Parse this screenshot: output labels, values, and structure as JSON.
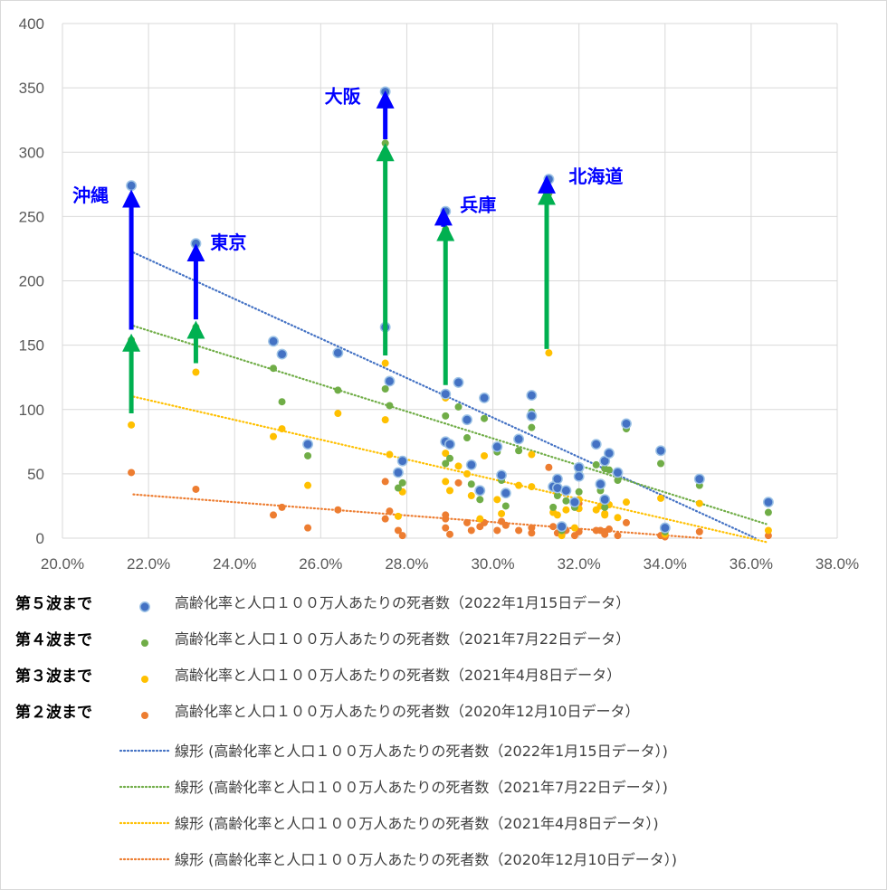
{
  "chart_data": {
    "type": "scatter",
    "xlim": [
      0.2,
      0.38
    ],
    "ylim": [
      0,
      400
    ],
    "x_ticks": [
      "20.0%",
      "22.0%",
      "24.0%",
      "26.0%",
      "28.0%",
      "30.0%",
      "32.0%",
      "34.0%",
      "36.0%",
      "38.0%"
    ],
    "y_ticks": [
      "0",
      "50",
      "100",
      "150",
      "200",
      "250",
      "300",
      "350",
      "400"
    ],
    "grid": true,
    "series": [
      {
        "name": "高齢化率と人口１００万人あたりの死者数（2022年1月15日データ）",
        "wave_label": "第５波まで",
        "color": "#4472c4",
        "points": [
          [
            0.216,
            274
          ],
          [
            0.231,
            229
          ],
          [
            0.249,
            153
          ],
          [
            0.251,
            143
          ],
          [
            0.257,
            73
          ],
          [
            0.264,
            144
          ],
          [
            0.275,
            347
          ],
          [
            0.275,
            164
          ],
          [
            0.276,
            122
          ],
          [
            0.278,
            51
          ],
          [
            0.279,
            60
          ],
          [
            0.289,
            254
          ],
          [
            0.289,
            112
          ],
          [
            0.289,
            75
          ],
          [
            0.29,
            73
          ],
          [
            0.292,
            121
          ],
          [
            0.294,
            92
          ],
          [
            0.295,
            57
          ],
          [
            0.297,
            37
          ],
          [
            0.298,
            109
          ],
          [
            0.301,
            71
          ],
          [
            0.302,
            49
          ],
          [
            0.303,
            35
          ],
          [
            0.306,
            77
          ],
          [
            0.309,
            111
          ],
          [
            0.309,
            95
          ],
          [
            0.313,
            279
          ],
          [
            0.314,
            40
          ],
          [
            0.315,
            46
          ],
          [
            0.315,
            39
          ],
          [
            0.316,
            9
          ],
          [
            0.317,
            37
          ],
          [
            0.319,
            28
          ],
          [
            0.32,
            55
          ],
          [
            0.32,
            48
          ],
          [
            0.324,
            73
          ],
          [
            0.325,
            42
          ],
          [
            0.326,
            60
          ],
          [
            0.326,
            30
          ],
          [
            0.327,
            66
          ],
          [
            0.329,
            51
          ],
          [
            0.331,
            89
          ],
          [
            0.339,
            68
          ],
          [
            0.34,
            8
          ],
          [
            0.348,
            46
          ],
          [
            0.364,
            28
          ]
        ]
      },
      {
        "name": "高齢化率と人口１００万人あたりの死者数（2021年7月22日データ）",
        "wave_label": "第４波まで",
        "color": "#70ad47",
        "points": [
          [
            0.216,
            154
          ],
          [
            0.231,
            164
          ],
          [
            0.249,
            132
          ],
          [
            0.251,
            106
          ],
          [
            0.257,
            64
          ],
          [
            0.264,
            115
          ],
          [
            0.275,
            307
          ],
          [
            0.275,
            116
          ],
          [
            0.276,
            103
          ],
          [
            0.278,
            39
          ],
          [
            0.279,
            43
          ],
          [
            0.289,
            240
          ],
          [
            0.289,
            95
          ],
          [
            0.289,
            58
          ],
          [
            0.29,
            62
          ],
          [
            0.292,
            102
          ],
          [
            0.294,
            78
          ],
          [
            0.295,
            42
          ],
          [
            0.297,
            30
          ],
          [
            0.298,
            93
          ],
          [
            0.301,
            67
          ],
          [
            0.302,
            45
          ],
          [
            0.303,
            25
          ],
          [
            0.306,
            68
          ],
          [
            0.309,
            98
          ],
          [
            0.309,
            86
          ],
          [
            0.313,
            268
          ],
          [
            0.314,
            24
          ],
          [
            0.315,
            33
          ],
          [
            0.316,
            6
          ],
          [
            0.317,
            29
          ],
          [
            0.319,
            24
          ],
          [
            0.32,
            51
          ],
          [
            0.32,
            36
          ],
          [
            0.324,
            57
          ],
          [
            0.325,
            37
          ],
          [
            0.326,
            54
          ],
          [
            0.326,
            24
          ],
          [
            0.327,
            53
          ],
          [
            0.329,
            45
          ],
          [
            0.331,
            85
          ],
          [
            0.339,
            58
          ],
          [
            0.34,
            5
          ],
          [
            0.348,
            41
          ],
          [
            0.364,
            20
          ]
        ]
      },
      {
        "name": "高齢化率と人口１００万人あたりの死者数（2021年4月8日データ）",
        "wave_label": "第３波まで",
        "color": "#ffc000",
        "points": [
          [
            0.216,
            88
          ],
          [
            0.231,
            129
          ],
          [
            0.249,
            79
          ],
          [
            0.251,
            85
          ],
          [
            0.257,
            41
          ],
          [
            0.264,
            97
          ],
          [
            0.275,
            136
          ],
          [
            0.275,
            92
          ],
          [
            0.276,
            65
          ],
          [
            0.278,
            17
          ],
          [
            0.279,
            36
          ],
          [
            0.289,
            109
          ],
          [
            0.289,
            66
          ],
          [
            0.289,
            44
          ],
          [
            0.29,
            37
          ],
          [
            0.292,
            56
          ],
          [
            0.294,
            50
          ],
          [
            0.295,
            33
          ],
          [
            0.297,
            15
          ],
          [
            0.298,
            64
          ],
          [
            0.301,
            30
          ],
          [
            0.302,
            19
          ],
          [
            0.303,
            35
          ],
          [
            0.306,
            41
          ],
          [
            0.309,
            65
          ],
          [
            0.309,
            40
          ],
          [
            0.313,
            144
          ],
          [
            0.314,
            20
          ],
          [
            0.315,
            18
          ],
          [
            0.316,
            2
          ],
          [
            0.317,
            22
          ],
          [
            0.319,
            8
          ],
          [
            0.32,
            30
          ],
          [
            0.32,
            23
          ],
          [
            0.324,
            22
          ],
          [
            0.325,
            25
          ],
          [
            0.326,
            18
          ],
          [
            0.326,
            19
          ],
          [
            0.327,
            26
          ],
          [
            0.329,
            16
          ],
          [
            0.331,
            28
          ],
          [
            0.339,
            31
          ],
          [
            0.34,
            3
          ],
          [
            0.348,
            27
          ],
          [
            0.364,
            6
          ]
        ]
      },
      {
        "name": "高齢化率と人口１００万人あたりの死者数（2020年12月10日データ）",
        "wave_label": "第２波まで",
        "color": "#ed7d31",
        "points": [
          [
            0.216,
            51
          ],
          [
            0.231,
            38
          ],
          [
            0.249,
            18
          ],
          [
            0.251,
            24
          ],
          [
            0.257,
            8
          ],
          [
            0.264,
            22
          ],
          [
            0.275,
            44
          ],
          [
            0.275,
            15
          ],
          [
            0.276,
            21
          ],
          [
            0.278,
            6
          ],
          [
            0.279,
            2
          ],
          [
            0.289,
            18
          ],
          [
            0.289,
            15
          ],
          [
            0.289,
            8
          ],
          [
            0.29,
            3
          ],
          [
            0.292,
            43
          ],
          [
            0.294,
            12
          ],
          [
            0.295,
            6
          ],
          [
            0.297,
            9
          ],
          [
            0.298,
            12
          ],
          [
            0.301,
            6
          ],
          [
            0.302,
            13
          ],
          [
            0.303,
            10
          ],
          [
            0.306,
            6
          ],
          [
            0.309,
            4
          ],
          [
            0.309,
            8
          ],
          [
            0.313,
            55
          ],
          [
            0.314,
            9
          ],
          [
            0.315,
            4
          ],
          [
            0.316,
            3
          ],
          [
            0.317,
            6
          ],
          [
            0.319,
            2
          ],
          [
            0.32,
            5
          ],
          [
            0.32,
            27
          ],
          [
            0.324,
            6
          ],
          [
            0.325,
            6
          ],
          [
            0.326,
            5
          ],
          [
            0.326,
            3
          ],
          [
            0.327,
            7
          ],
          [
            0.329,
            2
          ],
          [
            0.331,
            12
          ],
          [
            0.339,
            2
          ],
          [
            0.34,
            1
          ],
          [
            0.348,
            5
          ],
          [
            0.364,
            2
          ]
        ]
      }
    ],
    "trendlines": [
      {
        "name": "線形 (高齢化率と人口１００万人あたりの死者数（2022年1月15日データ）)",
        "color": "#4472c4",
        "x": [
          0.2165,
          0.361
        ],
        "y": [
          222,
          0
        ]
      },
      {
        "name": "線形 (高齢化率と人口１００万人あたりの死者数（2021年7月22日データ）)",
        "color": "#70ad47",
        "x": [
          0.2165,
          0.3635
        ],
        "y": [
          165,
          11
        ]
      },
      {
        "name": "線形 (高齢化率と人口１００万人あたりの死者数（2021年4月8日データ）)",
        "color": "#ffc000",
        "x": [
          0.2165,
          0.3635
        ],
        "y": [
          110,
          -3
        ]
      },
      {
        "name": "線形 (高齢化率と人口１００万人あたりの死者数（2020年12月10日データ）)",
        "color": "#ed7d31",
        "x": [
          0.2165,
          0.3485
        ],
        "y": [
          34,
          0
        ]
      }
    ],
    "annotations": [
      {
        "label": "沖縄",
        "x": 0.216,
        "y": 274
      },
      {
        "label": "東京",
        "x": 0.231,
        "y": 229
      },
      {
        "label": "大阪",
        "x": 0.275,
        "y": 347
      },
      {
        "label": "兵庫",
        "x": 0.289,
        "y": 254
      },
      {
        "label": "北海道",
        "x": 0.313,
        "y": 279
      }
    ],
    "arrows": [
      {
        "color": "#00b050",
        "x": 0.216,
        "y1": 97,
        "y2": 152
      },
      {
        "color": "#0000ff",
        "x": 0.216,
        "y1": 162,
        "y2": 264
      },
      {
        "color": "#00b050",
        "x": 0.231,
        "y1": 136,
        "y2": 162
      },
      {
        "color": "#0000ff",
        "x": 0.231,
        "y1": 170,
        "y2": 222
      },
      {
        "color": "#00b050",
        "x": 0.275,
        "y1": 142,
        "y2": 300
      },
      {
        "color": "#0000ff",
        "x": 0.275,
        "y1": 310,
        "y2": 341
      },
      {
        "color": "#00b050",
        "x": 0.289,
        "y1": 119,
        "y2": 238
      },
      {
        "color": "#0000ff",
        "x": 0.2885,
        "y1": 242,
        "y2": 250
      },
      {
        "color": "#00b050",
        "x": 0.3125,
        "y1": 147,
        "y2": 266
      },
      {
        "color": "#0000ff",
        "x": 0.3125,
        "y1": 270,
        "y2": 275
      }
    ]
  }
}
